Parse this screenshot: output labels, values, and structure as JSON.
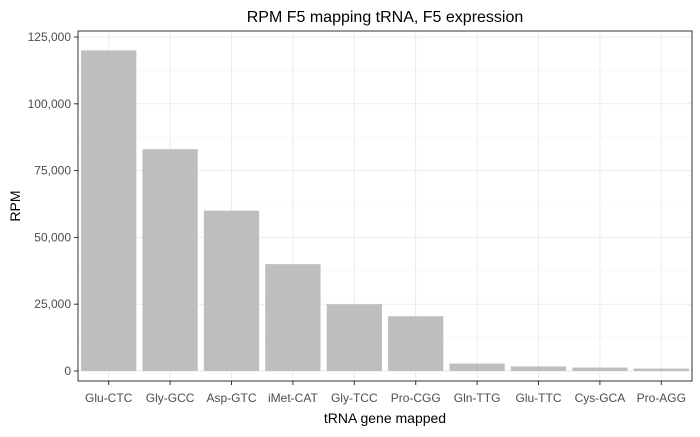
{
  "chart_data": {
    "type": "bar",
    "title": "RPM F5 mapping tRNA, F5 expression",
    "xlabel": "tRNA gene mapped",
    "ylabel": "RPM",
    "categories": [
      "Glu-CTC",
      "Gly-GCC",
      "Asp-GTC",
      "iMet-CAT",
      "Gly-TCC",
      "Pro-CGG",
      "Gln-TTG",
      "Glu-TTC",
      "Cys-GCA",
      "Pro-AGG"
    ],
    "values": [
      120000,
      83000,
      60000,
      40000,
      25000,
      20500,
      2800,
      1700,
      1300,
      900
    ],
    "ylim": [
      0,
      125000
    ],
    "yticks": [
      0,
      25000,
      50000,
      75000,
      100000,
      125000
    ],
    "ytick_labels": [
      "0",
      "25,000",
      "50,000",
      "75,000",
      "100,000",
      "125,000"
    ],
    "grid": true,
    "colors": {
      "bar": "#bebebe",
      "grid_major": "#ebebeb",
      "grid_minor": "#f4f4f4",
      "panel_border": "#333333",
      "axis_text": "#1a1a1a"
    }
  }
}
